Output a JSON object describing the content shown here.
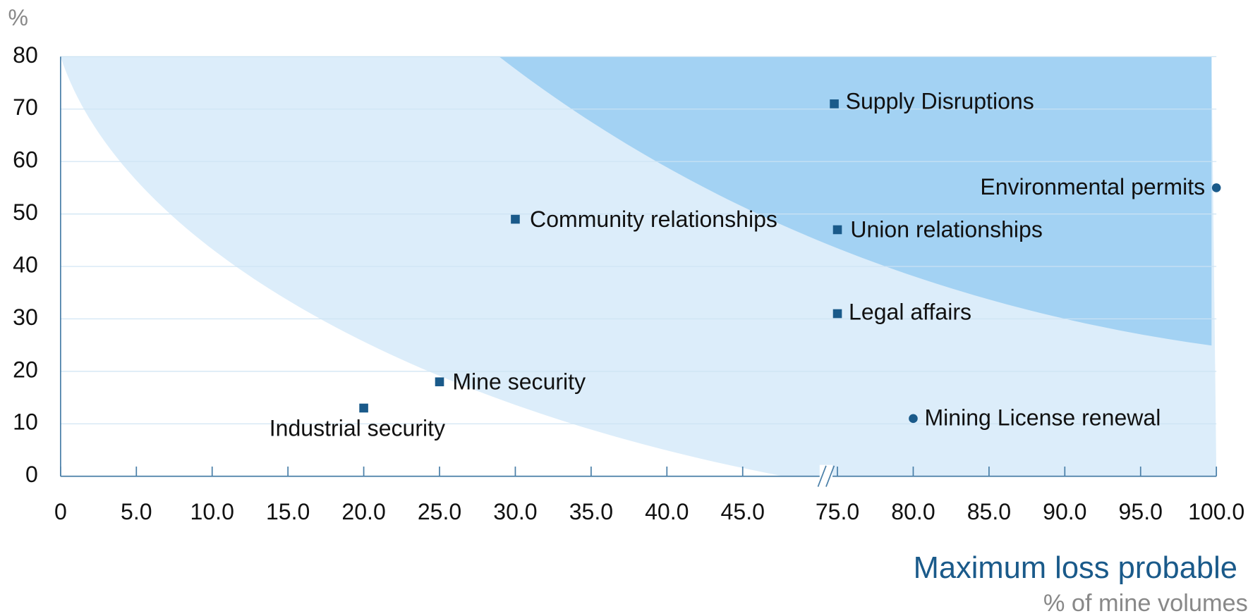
{
  "chart_data": {
    "type": "scatter",
    "y_label": "%",
    "x_label": "Maximum loss probable",
    "x_sublabel": "% of mine volumes",
    "labels": [
      "Industrial security",
      "Mine security",
      "Community relationships",
      "Supply Disruptions",
      "Union relationships",
      "Legal affairs",
      "Mining License renewal",
      "Environmental permits"
    ],
    "x": [
      20,
      25,
      30,
      74,
      75,
      75,
      80,
      100
    ],
    "values": [
      13,
      18,
      49,
      71,
      47,
      31,
      11,
      55
    ],
    "markers": [
      "square",
      "square",
      "square",
      "square",
      "square",
      "square",
      "circle",
      "circle"
    ],
    "color": "#1a5a8a",
    "xlim": [
      0,
      100
    ],
    "ylim": [
      0,
      80
    ],
    "xticks": [
      0,
      {
        "value": 5,
        "label": "5.0"
      },
      {
        "value": 10,
        "label": "10.0"
      },
      {
        "value": 15,
        "label": "15.0"
      },
      {
        "value": 20,
        "label": "20.0"
      },
      {
        "value": 25,
        "label": "25.0"
      },
      {
        "value": 30,
        "label": "30.0"
      },
      {
        "value": 35,
        "label": "35.0"
      },
      {
        "value": 40,
        "label": "40.0"
      },
      {
        "value": 45,
        "label": "45.0"
      },
      {
        "value": 75,
        "label": "75.0"
      },
      {
        "value": 80,
        "label": "80.0"
      },
      {
        "value": 85,
        "label": "85.0"
      },
      {
        "value": 90,
        "label": "90.0"
      },
      {
        "value": 95,
        "label": "95.0"
      },
      {
        "value": 100,
        "label": "100.0"
      }
    ],
    "yticks": [
      0,
      10,
      20,
      30,
      40,
      50,
      60,
      70,
      80
    ],
    "x_axis_break": true,
    "grid": true
  }
}
